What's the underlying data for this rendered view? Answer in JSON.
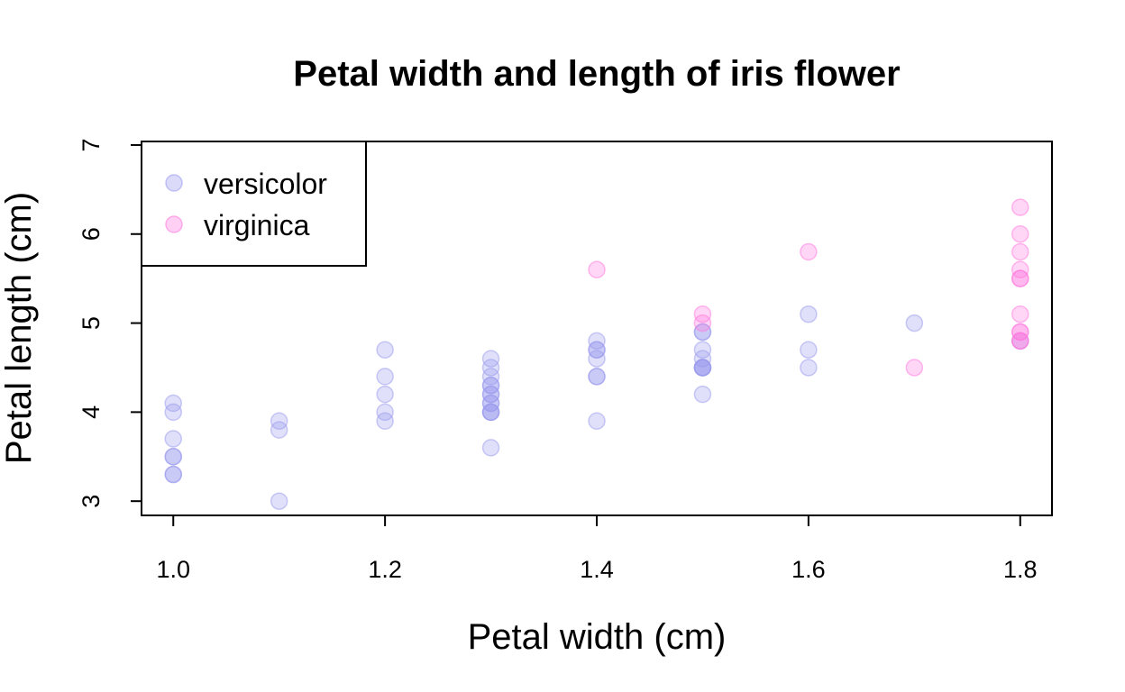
{
  "chart_data": {
    "type": "scatter",
    "title": "Petal width and length of iris flower",
    "xlabel": "Petal width (cm)",
    "ylabel": "Petal length (cm)",
    "xlim": [
      0.97,
      1.83
    ],
    "ylim": [
      2.84,
      7.04
    ],
    "xticks": [
      1.0,
      1.2,
      1.4,
      1.6,
      1.8
    ],
    "xtick_labels": [
      "1.0",
      "1.2",
      "1.4",
      "1.6",
      "1.8"
    ],
    "yticks": [
      3,
      4,
      5,
      6,
      7
    ],
    "ytick_labels": [
      "3",
      "4",
      "5",
      "6",
      "7"
    ],
    "grid": false,
    "legend_position": "top-left",
    "series": [
      {
        "name": "versicolor",
        "color": "#9999ee",
        "points": [
          [
            1.0,
            4.1
          ],
          [
            1.0,
            4.0
          ],
          [
            1.0,
            3.7
          ],
          [
            1.0,
            3.5
          ],
          [
            1.0,
            3.5
          ],
          [
            1.0,
            3.3
          ],
          [
            1.0,
            3.3
          ],
          [
            1.1,
            3.9
          ],
          [
            1.1,
            3.8
          ],
          [
            1.1,
            3.0
          ],
          [
            1.2,
            4.7
          ],
          [
            1.2,
            4.4
          ],
          [
            1.2,
            4.2
          ],
          [
            1.2,
            4.0
          ],
          [
            1.2,
            3.9
          ],
          [
            1.3,
            4.6
          ],
          [
            1.3,
            4.5
          ],
          [
            1.3,
            4.4
          ],
          [
            1.3,
            4.3
          ],
          [
            1.3,
            4.3
          ],
          [
            1.3,
            4.2
          ],
          [
            1.3,
            4.2
          ],
          [
            1.3,
            4.1
          ],
          [
            1.3,
            4.1
          ],
          [
            1.3,
            4.0
          ],
          [
            1.3,
            4.0
          ],
          [
            1.3,
            4.0
          ],
          [
            1.3,
            3.6
          ],
          [
            1.4,
            4.8
          ],
          [
            1.4,
            4.7
          ],
          [
            1.4,
            4.7
          ],
          [
            1.4,
            4.6
          ],
          [
            1.4,
            4.4
          ],
          [
            1.4,
            4.4
          ],
          [
            1.4,
            3.9
          ],
          [
            1.5,
            4.9
          ],
          [
            1.5,
            4.9
          ],
          [
            1.5,
            4.7
          ],
          [
            1.5,
            4.6
          ],
          [
            1.5,
            4.5
          ],
          [
            1.5,
            4.5
          ],
          [
            1.5,
            4.5
          ],
          [
            1.5,
            4.5
          ],
          [
            1.5,
            4.2
          ],
          [
            1.6,
            5.1
          ],
          [
            1.6,
            4.7
          ],
          [
            1.6,
            4.5
          ],
          [
            1.7,
            5.0
          ],
          [
            1.8,
            4.8
          ]
        ]
      },
      {
        "name": "virginica",
        "color": "#ff77dd",
        "points": [
          [
            1.4,
            5.6
          ],
          [
            1.5,
            5.1
          ],
          [
            1.5,
            5.0
          ],
          [
            1.6,
            5.8
          ],
          [
            1.7,
            4.5
          ],
          [
            1.8,
            6.3
          ],
          [
            1.8,
            6.0
          ],
          [
            1.8,
            5.8
          ],
          [
            1.8,
            5.6
          ],
          [
            1.8,
            5.5
          ],
          [
            1.8,
            5.5
          ],
          [
            1.8,
            5.1
          ],
          [
            1.8,
            4.9
          ],
          [
            1.8,
            4.9
          ],
          [
            1.8,
            4.8
          ],
          [
            1.8,
            4.8
          ]
        ]
      }
    ]
  }
}
